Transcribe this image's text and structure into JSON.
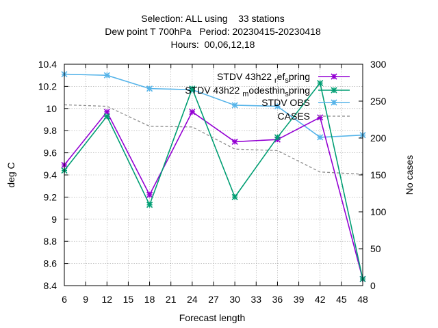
{
  "chart_data": {
    "type": "line",
    "title_lines": [
      "Selection: ALL using    33 stations",
      "Dew point T 700hPa   Period: 20230415-20230418",
      "Hours:  00,06,12,18"
    ],
    "xlabel": "Forecast length",
    "ylabel": "deg C",
    "y2label": "No cases",
    "xlim": [
      6,
      48
    ],
    "ylim": [
      8.4,
      10.4
    ],
    "y2lim": [
      0,
      300
    ],
    "xticks": [
      6,
      9,
      12,
      15,
      18,
      21,
      24,
      27,
      30,
      33,
      36,
      39,
      42,
      45,
      48
    ],
    "yticks": [
      "8.4",
      "8.6",
      "8.8",
      "9",
      "9.2",
      "9.4",
      "9.6",
      "9.8",
      "10",
      "10.2",
      "10.4"
    ],
    "y2ticks": [
      0,
      50,
      100,
      150,
      200,
      250,
      300
    ],
    "grid": true,
    "legend_position": "top-right",
    "series": [
      {
        "name": "STDV 43h22_ref_spring",
        "legend_parts": [
          "STDV 43h22",
          "ref",
          "spring"
        ],
        "axis": "y",
        "color": "#9400d3",
        "x": [
          6,
          12,
          18,
          24,
          30,
          36,
          42,
          48
        ],
        "values": [
          9.49,
          9.97,
          9.22,
          9.97,
          9.7,
          9.72,
          9.92,
          8.46
        ]
      },
      {
        "name": "STDV 43h22_modesthin_spring",
        "legend_parts": [
          "STDV 43h22",
          "modesthin",
          "spring"
        ],
        "axis": "y",
        "color": "#009e73",
        "x": [
          6,
          12,
          18,
          24,
          30,
          36,
          42,
          48
        ],
        "values": [
          9.44,
          9.93,
          9.13,
          10.18,
          9.2,
          9.74,
          10.23,
          8.46
        ]
      },
      {
        "name": "STDV OBS",
        "axis": "y",
        "color": "#56b4e9",
        "x": [
          6,
          12,
          18,
          24,
          30,
          36,
          42,
          48
        ],
        "values": [
          10.31,
          10.3,
          10.18,
          10.17,
          10.03,
          10.02,
          9.74,
          9.76
        ]
      },
      {
        "name": "CASES",
        "axis": "y2",
        "color": "#888888",
        "dashed": true,
        "x": [
          6,
          12,
          18,
          24,
          30,
          36,
          42,
          48
        ],
        "values": [
          245,
          243,
          216,
          215,
          185,
          183,
          154,
          151
        ]
      }
    ]
  }
}
